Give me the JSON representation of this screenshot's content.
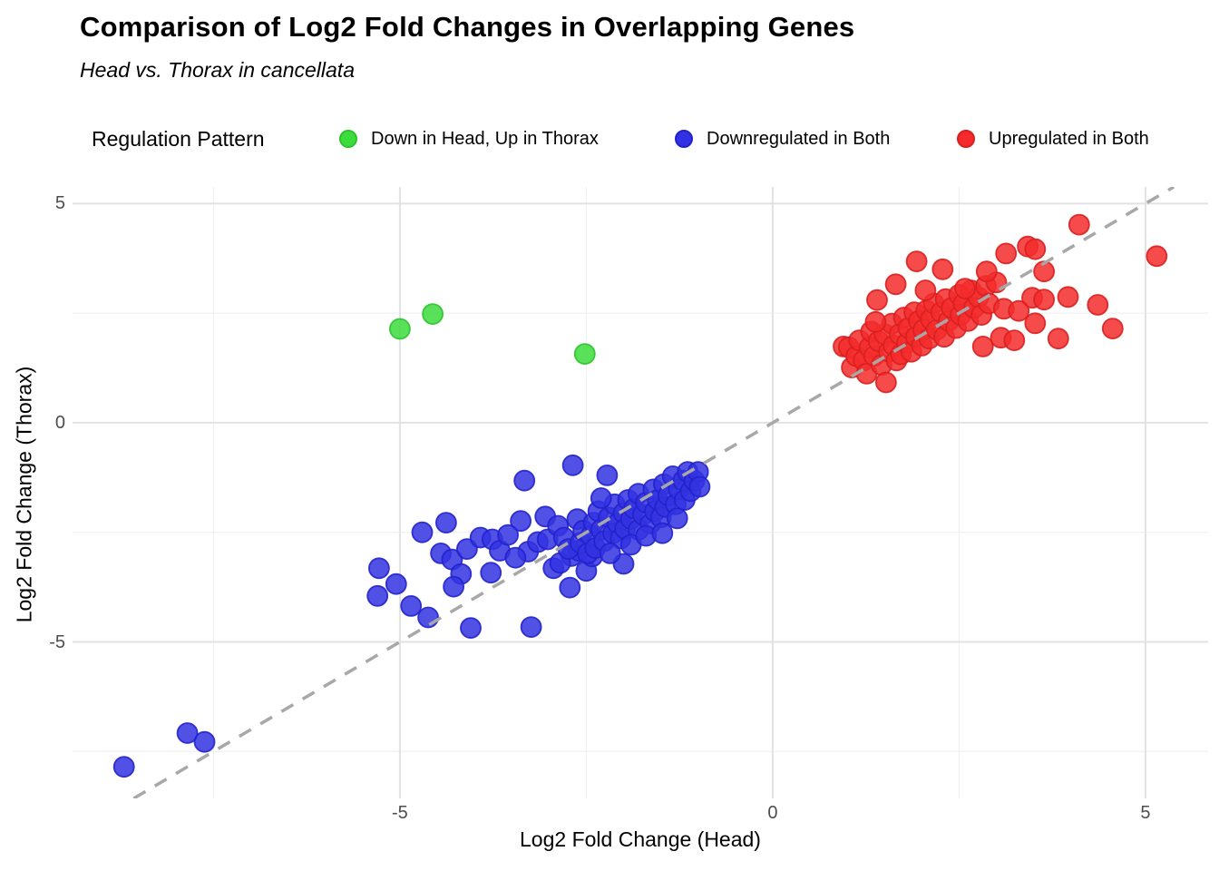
{
  "chart_data": {
    "type": "scatter",
    "title": "Comparison of Log2 Fold Changes in Overlapping Genes",
    "subtitle": "Head vs. Thorax in cancellata",
    "legend_title": "Regulation Pattern",
    "xlabel": "Log2 Fold Change (Head)",
    "ylabel": "Log2 Fold Change (Thorax)",
    "xlim": [
      -9.39,
      5.84
    ],
    "ylim": [
      -8.57,
      5.38
    ],
    "x_major_ticks": [
      -5,
      0,
      5
    ],
    "x_minor_ticks": [
      -7.5,
      -2.5,
      2.5
    ],
    "y_major_ticks": [
      5,
      0,
      -5
    ],
    "y_minor_ticks": [
      2.5,
      -2.5,
      -7.5
    ],
    "grid": {
      "major_color": "#e2e2e2",
      "minor_color": "#eeeeee",
      "background": "#ffffff"
    },
    "legend_position": "top",
    "reference_line": {
      "type": "identity",
      "style": "dashed",
      "color": "#a8a8a8"
    },
    "point_radius": 11,
    "series": [
      {
        "name": "Down in Head, Up in Thorax",
        "fill": "#3ddc3d",
        "stroke": "#2cc32c",
        "points": [
          [
            -5.0,
            2.14
          ],
          [
            -4.56,
            2.48
          ],
          [
            -2.52,
            1.57
          ]
        ]
      },
      {
        "name": "Downregulated in Both",
        "fill": "#3232e2",
        "stroke": "#2222cc",
        "points": [
          [
            -8.7,
            -7.85
          ],
          [
            -7.85,
            -7.08
          ],
          [
            -7.62,
            -7.28
          ],
          [
            -5.28,
            -3.32
          ],
          [
            -5.3,
            -3.95
          ],
          [
            -5.05,
            -3.68
          ],
          [
            -4.85,
            -4.18
          ],
          [
            -4.7,
            -2.5
          ],
          [
            -4.62,
            -4.44
          ],
          [
            -4.38,
            -2.28
          ],
          [
            -4.45,
            -2.98
          ],
          [
            -4.3,
            -3.12
          ],
          [
            -4.18,
            -3.45
          ],
          [
            -4.28,
            -3.74
          ],
          [
            -4.05,
            -4.68
          ],
          [
            -4.1,
            -2.88
          ],
          [
            -3.92,
            -2.62
          ],
          [
            -3.76,
            -2.66
          ],
          [
            -3.66,
            -2.92
          ],
          [
            -3.78,
            -3.42
          ],
          [
            -3.38,
            -2.24
          ],
          [
            -3.55,
            -2.56
          ],
          [
            -3.28,
            -2.94
          ],
          [
            -3.24,
            -4.66
          ],
          [
            -3.05,
            -2.14
          ],
          [
            -2.94,
            -3.32
          ],
          [
            -2.72,
            -3.76
          ],
          [
            -2.7,
            -3.04
          ],
          [
            -3.15,
            -2.72
          ],
          [
            -3.02,
            -2.66
          ],
          [
            -3.45,
            -3.08
          ],
          [
            -2.5,
            -3.38
          ],
          [
            -2.42,
            -3.05
          ],
          [
            -2.85,
            -3.2
          ],
          [
            -2.6,
            -2.92
          ],
          [
            -2.0,
            -3.22
          ],
          [
            -3.33,
            -1.32
          ],
          [
            -2.68,
            -0.97
          ],
          [
            -2.22,
            -1.2
          ],
          [
            -2.88,
            -2.35
          ],
          [
            -2.8,
            -2.62
          ],
          [
            -2.74,
            -2.88
          ],
          [
            -2.62,
            -2.2
          ],
          [
            -2.58,
            -2.74
          ],
          [
            -2.54,
            -2.46
          ],
          [
            -2.48,
            -2.98
          ],
          [
            -2.44,
            -2.58
          ],
          [
            -2.4,
            -2.28
          ],
          [
            -2.38,
            -2.86
          ],
          [
            -2.34,
            -2.02
          ],
          [
            -2.3,
            -2.44
          ],
          [
            -2.26,
            -2.7
          ],
          [
            -2.2,
            -2.16
          ],
          [
            -2.14,
            -2.52
          ],
          [
            -2.12,
            -1.86
          ],
          [
            -2.08,
            -2.3
          ],
          [
            -2.04,
            -2.64
          ],
          [
            -2.0,
            -2.06
          ],
          [
            -1.98,
            -2.42
          ],
          [
            -2.3,
            -1.72
          ],
          [
            -2.18,
            -2.98
          ],
          [
            -1.94,
            -1.76
          ],
          [
            -1.9,
            -2.2
          ],
          [
            -1.86,
            -1.96
          ],
          [
            -1.8,
            -1.62
          ],
          [
            -1.8,
            -2.44
          ],
          [
            -1.74,
            -2.1
          ],
          [
            -1.7,
            -1.82
          ],
          [
            -1.64,
            -2.3
          ],
          [
            -1.6,
            -1.52
          ],
          [
            -1.58,
            -2.02
          ],
          [
            -1.54,
            -1.76
          ],
          [
            -1.5,
            -2.16
          ],
          [
            -1.9,
            -2.78
          ],
          [
            -1.7,
            -2.58
          ],
          [
            -1.46,
            -1.4
          ],
          [
            -1.44,
            -1.92
          ],
          [
            -1.4,
            -1.66
          ],
          [
            -1.34,
            -1.22
          ],
          [
            -1.3,
            -1.86
          ],
          [
            -1.26,
            -1.52
          ],
          [
            -1.2,
            -1.32
          ],
          [
            -1.18,
            -1.76
          ],
          [
            -1.14,
            -1.12
          ],
          [
            -1.1,
            -1.56
          ],
          [
            -1.05,
            -1.32
          ],
          [
            -1.0,
            -1.12
          ],
          [
            -0.98,
            -1.46
          ],
          [
            -1.28,
            -2.18
          ],
          [
            -1.48,
            -2.52
          ]
        ]
      },
      {
        "name": "Upregulated in Both",
        "fill": "#f32b2b",
        "stroke": "#d91f1f",
        "points": [
          [
            0.95,
            1.74
          ],
          [
            1.02,
            1.72
          ],
          [
            1.06,
            1.26
          ],
          [
            1.12,
            1.52
          ],
          [
            1.16,
            1.88
          ],
          [
            1.22,
            1.42
          ],
          [
            1.26,
            1.12
          ],
          [
            1.3,
            1.72
          ],
          [
            1.32,
            2.08
          ],
          [
            1.36,
            1.52
          ],
          [
            1.42,
            1.86
          ],
          [
            1.46,
            1.32
          ],
          [
            1.52,
            0.92
          ],
          [
            1.5,
            2.02
          ],
          [
            1.56,
            1.62
          ],
          [
            1.6,
            2.26
          ],
          [
            1.62,
            1.76
          ],
          [
            1.66,
            1.42
          ],
          [
            1.7,
            2.02
          ],
          [
            1.72,
            1.56
          ],
          [
            1.76,
            2.4
          ],
          [
            1.8,
            1.82
          ],
          [
            1.82,
            2.16
          ],
          [
            1.86,
            1.62
          ],
          [
            1.9,
            2.52
          ],
          [
            1.92,
            1.96
          ],
          [
            1.96,
            2.32
          ],
          [
            2.0,
            1.76
          ],
          [
            2.02,
            2.12
          ],
          [
            2.06,
            2.56
          ],
          [
            2.1,
            1.92
          ],
          [
            2.12,
            2.36
          ],
          [
            2.16,
            2.72
          ],
          [
            2.2,
            2.12
          ],
          [
            2.26,
            2.52
          ],
          [
            2.3,
            1.96
          ],
          [
            2.32,
            2.82
          ],
          [
            2.36,
            2.32
          ],
          [
            2.4,
            2.62
          ],
          [
            2.46,
            2.16
          ],
          [
            2.5,
            2.92
          ],
          [
            2.52,
            2.46
          ],
          [
            2.56,
            2.72
          ],
          [
            2.62,
            2.32
          ],
          [
            2.66,
            3.02
          ],
          [
            2.7,
            2.62
          ],
          [
            2.76,
            2.86
          ],
          [
            2.8,
            2.46
          ],
          [
            2.86,
            3.12
          ],
          [
            2.9,
            2.72
          ],
          [
            1.38,
            2.3
          ],
          [
            1.65,
            3.16
          ],
          [
            2.05,
            3.02
          ],
          [
            2.58,
            3.06
          ],
          [
            1.4,
            2.8
          ],
          [
            3.0,
            3.2
          ],
          [
            3.1,
            2.6
          ],
          [
            1.93,
            3.68
          ],
          [
            2.28,
            3.5
          ],
          [
            2.87,
            3.45
          ],
          [
            3.13,
            3.86
          ],
          [
            3.42,
            4.02
          ],
          [
            3.52,
            3.96
          ],
          [
            3.64,
            3.45
          ],
          [
            4.11,
            4.52
          ],
          [
            5.15,
            3.8
          ],
          [
            2.82,
            1.74
          ],
          [
            3.06,
            1.94
          ],
          [
            3.24,
            1.88
          ],
          [
            3.52,
            2.27
          ],
          [
            3.83,
            1.92
          ],
          [
            4.56,
            2.15
          ],
          [
            3.48,
            2.85
          ],
          [
            3.64,
            2.81
          ],
          [
            3.96,
            2.87
          ],
          [
            4.36,
            2.69
          ],
          [
            3.3,
            2.55
          ]
        ]
      }
    ]
  }
}
